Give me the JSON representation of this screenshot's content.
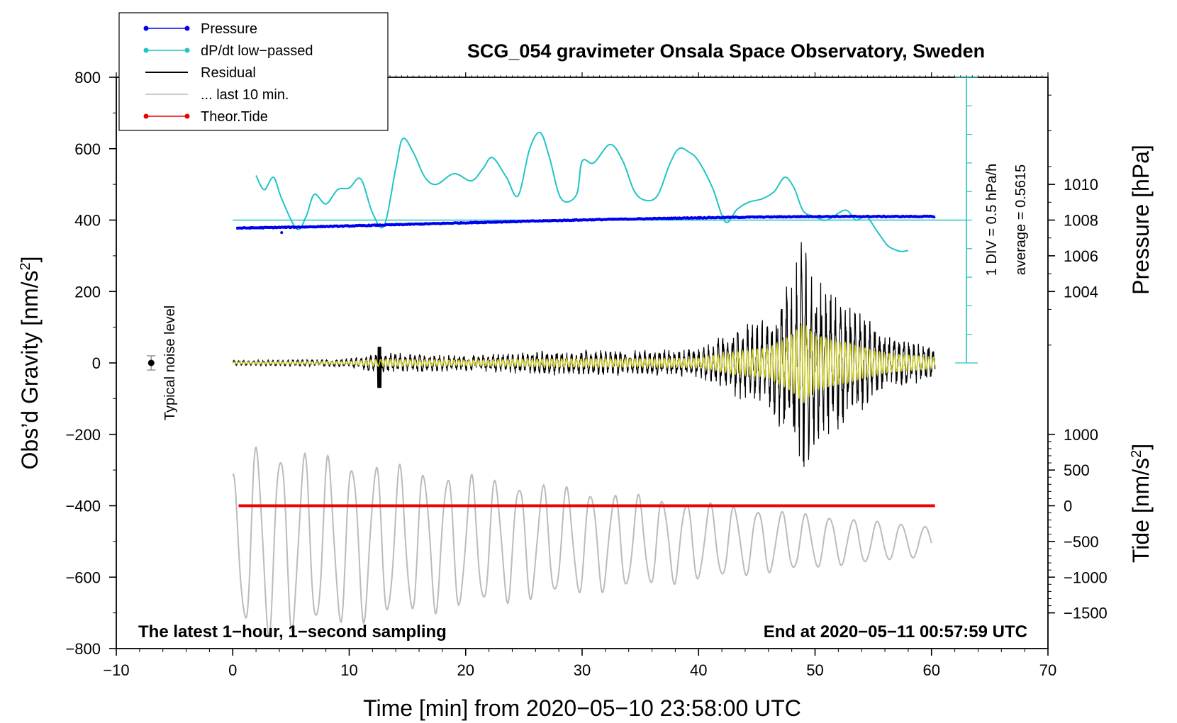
{
  "chart_data": {
    "type": "line",
    "title": "SCG_054 gravimeter Onsala Space Observatory, Sweden",
    "xlabel": "Time [min] from 2020−05−10 23:58:00 UTC",
    "ylabel_left": "Obs’d Gravity [nm/s",
    "ylabel_left_suffix": "]",
    "ylabel_left_sup": "2",
    "ylabel_pressure": "Pressure [hPa]",
    "ylabel_tide": "Tide [nm/s",
    "ylabel_tide_suffix": "]",
    "ylabel_tide_sup": "2",
    "xlim": [
      -10,
      70
    ],
    "ylim": [
      -800,
      800
    ],
    "x_ticks": [
      -10,
      0,
      10,
      20,
      30,
      40,
      50,
      60,
      70
    ],
    "x_tick_labels": [
      "−10",
      "0",
      "10",
      "20",
      "30",
      "40",
      "50",
      "60",
      "70"
    ],
    "y_ticks": [
      -800,
      -600,
      -400,
      -200,
      0,
      200,
      400,
      600,
      800
    ],
    "y_tick_labels": [
      "−800",
      "−600",
      "−400",
      "−200",
      "0",
      "200",
      "400",
      "600",
      "800"
    ],
    "pressure_ticks": [
      1004,
      1006,
      1008,
      1010
    ],
    "pressure_tick_labels": [
      "1004",
      "1006",
      "1008",
      "1010"
    ],
    "pressure_axis": {
      "hpa_at_gravity_0": 1000,
      "hpa_per_gravity_unit": 0.02
    },
    "tide_ticks": [
      -1500,
      -1000,
      -500,
      0,
      500,
      1000
    ],
    "tide_tick_labels": [
      "−1500",
      "−1000",
      "−500",
      "0",
      "500",
      "1000"
    ],
    "tide_axis": {
      "tide_zero_at_gravity": -400,
      "gravity_per_tide_unit": 0.2
    },
    "legend": {
      "position": "top-left",
      "entries": [
        {
          "label": "Pressure",
          "color": "#0000ee",
          "marker": true
        },
        {
          "label": "dP/dt low−passed",
          "color": "#22c4c4",
          "marker": true
        },
        {
          "label": "Residual",
          "color": "#000000",
          "marker": false
        },
        {
          "label": "... last 10 min.",
          "color": "#bbbbbb",
          "marker": false
        },
        {
          "label": "Theor.Tide",
          "color": "#ee0000",
          "marker": true
        }
      ]
    },
    "annotations": {
      "noise_label": "Typical noise level",
      "noise_point": {
        "x": -7,
        "y": 0,
        "err": 20
      },
      "dpdt_scale_line1": "1 DIV = 0.5 hPa/h",
      "dpdt_scale_line2": "average = 0.5615",
      "bottom_left": "The latest 1−hour, 1−second sampling",
      "bottom_right": "End at 2020−05−11 00:57:59 UTC"
    },
    "series": [
      {
        "name": "Pressure",
        "color": "#0000ee",
        "unit": "hPa",
        "x": [
          0.3,
          5,
          10,
          15,
          20,
          25,
          30,
          35,
          40,
          45,
          50,
          55,
          60.3
        ],
        "y": [
          1007.55,
          1007.6,
          1007.67,
          1007.76,
          1007.85,
          1007.93,
          1008.01,
          1008.07,
          1008.13,
          1008.17,
          1008.2,
          1008.2,
          1008.2
        ]
      },
      {
        "name": "dP/dt low-passed",
        "color": "#22c4c4",
        "unit": "gravity-axis",
        "x": [
          2,
          2.7,
          3.5,
          4.2,
          5.5,
          6.3,
          7,
          8,
          9,
          10,
          11,
          12,
          13,
          14,
          14.6,
          15.5,
          16.5,
          17.5,
          19,
          20.5,
          21.5,
          22.3,
          23.5,
          24.5,
          25.5,
          26.4,
          27.2,
          28.2,
          29.5,
          30,
          31,
          32.4,
          33.5,
          34.5,
          35.5,
          36.5,
          37.5,
          38.3,
          39.2,
          40,
          41.2,
          42.3,
          43.3,
          44.3,
          45.5,
          46.5,
          47.4,
          48.2,
          49,
          50,
          51,
          52.6,
          53.5,
          54.4,
          55.3,
          56.2,
          56.8,
          57.4,
          58
        ],
        "y": [
          525,
          485,
          520,
          460,
          375,
          410,
          472,
          445,
          485,
          490,
          515,
          420,
          385,
          545,
          628,
          590,
          520,
          500,
          530,
          510,
          545,
          575,
          520,
          468,
          600,
          645,
          575,
          460,
          470,
          565,
          560,
          612,
          565,
          480,
          455,
          470,
          555,
          600,
          590,
          565,
          490,
          395,
          430,
          450,
          460,
          480,
          520,
          490,
          425,
          410,
          400,
          428,
          400,
          410,
          370,
          330,
          318,
          312,
          315
        ]
      },
      {
        "name": "Residual",
        "color": "#000000",
        "unit": "gravity-axis",
        "peak_abs": 320,
        "span": [
          0,
          60.3
        ],
        "envelope": {
          "x": [
            0,
            10,
            12.5,
            20,
            28,
            35,
            40,
            43,
            46,
            48,
            49,
            50,
            53,
            56,
            60.3
          ],
          "amp": [
            6,
            10,
            25,
            20,
            30,
            30,
            35,
            80,
            110,
            210,
            300,
            200,
            140,
            70,
            40
          ]
        }
      },
      {
        "name": "last 10 min.",
        "color": "#bbbbbb",
        "unit": "gravity-axis",
        "x_span": [
          0,
          60
        ],
        "baseline": -500,
        "amplitude_early": 230,
        "amplitude_late": 40
      },
      {
        "name": "Theor.Tide",
        "color": "#ee0000",
        "unit": "nm/s2",
        "x": [
          0.5,
          60.3
        ],
        "y": [
          0,
          0
        ]
      }
    ],
    "zero_line_gravity": 400,
    "grid": false
  }
}
